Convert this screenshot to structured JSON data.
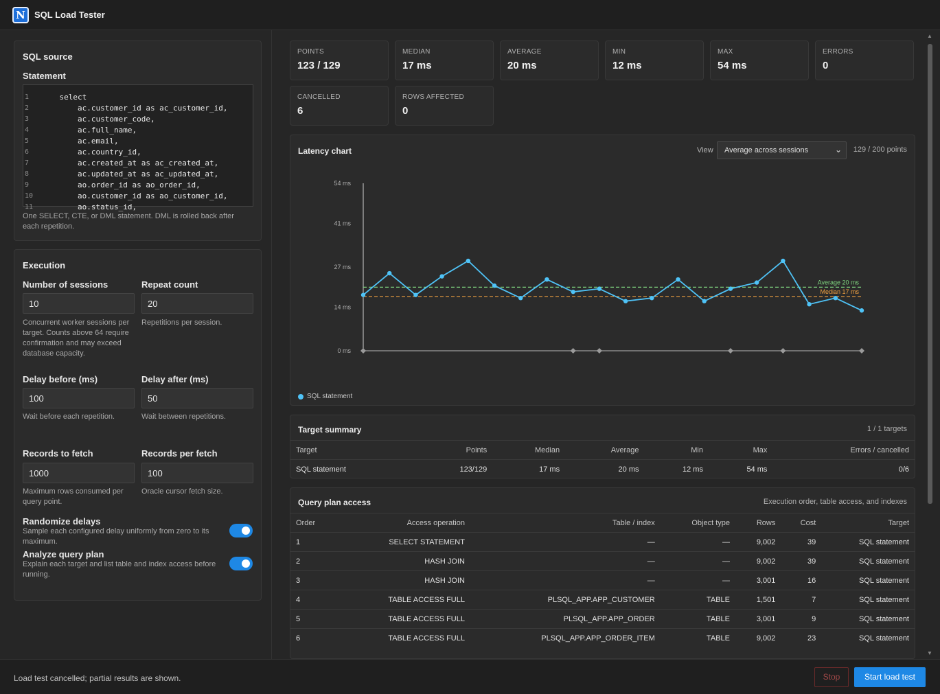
{
  "app": {
    "title": "SQL Load Tester"
  },
  "sql_source": {
    "title": "SQL source",
    "statement_label": "Statement",
    "lines": [
      {
        "n": "1",
        "t": "    select"
      },
      {
        "n": "2",
        "t": "        ac.customer_id as ac_customer_id,"
      },
      {
        "n": "3",
        "t": "        ac.customer_code,"
      },
      {
        "n": "4",
        "t": "        ac.full_name,"
      },
      {
        "n": "5",
        "t": "        ac.email,"
      },
      {
        "n": "6",
        "t": "        ac.country_id,"
      },
      {
        "n": "7",
        "t": "        ac.created_at as ac_created_at,"
      },
      {
        "n": "8",
        "t": "        ac.updated_at as ac_updated_at,"
      },
      {
        "n": "9",
        "t": "        ao.order_id as ao_order_id,"
      },
      {
        "n": "10",
        "t": "        ao.customer_id as ao_customer_id,"
      },
      {
        "n": "11",
        "t": "        ao.status_id,"
      }
    ],
    "help": "One SELECT, CTE, or DML statement. DML is rolled back after each repetition."
  },
  "execution": {
    "title": "Execution",
    "sessions_label": "Number of sessions",
    "sessions_value": "10",
    "sessions_help": "Concurrent worker sessions per target. Counts above 64 require confirmation and may exceed database capacity.",
    "repeat_label": "Repeat count",
    "repeat_value": "20",
    "repeat_help": "Repetitions per session.",
    "delay_before_label": "Delay before (ms)",
    "delay_before_value": "100",
    "delay_before_help": "Wait before each repetition.",
    "delay_after_label": "Delay after (ms)",
    "delay_after_value": "50",
    "delay_after_help": "Wait between repetitions.",
    "records_label": "Records to fetch",
    "records_value": "1000",
    "records_help": "Maximum rows consumed per query point.",
    "per_fetch_label": "Records per fetch",
    "per_fetch_value": "100",
    "per_fetch_help": "Oracle cursor fetch size.",
    "randomize_label": "Randomize delays",
    "randomize_help": "Sample each configured delay uniformly from zero to its maximum.",
    "randomize_on": true,
    "analyze_label": "Analyze query plan",
    "analyze_help": "Explain each target and list table and index access before running.",
    "analyze_on": true
  },
  "stats": [
    {
      "label": "POINTS",
      "value": "123 / 129"
    },
    {
      "label": "MEDIAN",
      "value": "17 ms"
    },
    {
      "label": "AVERAGE",
      "value": "20 ms"
    },
    {
      "label": "MIN",
      "value": "12 ms"
    },
    {
      "label": "MAX",
      "value": "54 ms"
    },
    {
      "label": "ERRORS",
      "value": "0"
    },
    {
      "label": "CANCELLED",
      "value": "6"
    },
    {
      "label": "ROWS AFFECTED",
      "value": "0"
    }
  ],
  "latency": {
    "title": "Latency chart",
    "view_label": "View",
    "view_selected": "Average across sessions",
    "points_text": "129 / 200 points",
    "legend": "SQL statement"
  },
  "chart_data": {
    "type": "line",
    "ylim": [
      0,
      54
    ],
    "yticks": [
      "54 ms",
      "41 ms",
      "27 ms",
      "14 ms",
      "0 ms"
    ],
    "ytick_values": [
      54,
      41,
      27,
      14,
      0
    ],
    "series": [
      {
        "name": "SQL statement",
        "color": "#4fc3f7",
        "values": [
          18,
          25,
          18,
          24,
          29,
          21,
          17,
          23,
          19,
          20,
          16,
          17,
          23,
          16,
          20,
          22,
          29,
          15,
          17,
          13
        ]
      }
    ],
    "cancelled_markers": [
      0,
      8,
      9,
      14,
      16,
      19
    ],
    "average": {
      "value": 20.5,
      "label": "Average 20 ms",
      "color": "#7fd47f"
    },
    "median": {
      "value": 17.5,
      "label": "Median 17 ms",
      "color": "#f0a040"
    }
  },
  "target_summary": {
    "title": "Target summary",
    "count": "1 / 1 targets",
    "headers": [
      "Target",
      "Points",
      "Median",
      "Average",
      "Min",
      "Max",
      "Errors / cancelled"
    ],
    "rows": [
      [
        "SQL statement",
        "123/129",
        "17 ms",
        "20 ms",
        "12 ms",
        "54 ms",
        "0/6"
      ]
    ]
  },
  "query_plan": {
    "title": "Query plan access",
    "subtitle": "Execution order, table access, and indexes",
    "headers": [
      "Order",
      "Access operation",
      "Table / index",
      "Object type",
      "Rows",
      "Cost",
      "Target"
    ],
    "rows": [
      [
        "1",
        "SELECT STATEMENT",
        "—",
        "—",
        "9,002",
        "39",
        "SQL statement"
      ],
      [
        "2",
        "HASH JOIN",
        "—",
        "—",
        "9,002",
        "39",
        "SQL statement"
      ],
      [
        "3",
        "HASH JOIN",
        "—",
        "—",
        "3,001",
        "16",
        "SQL statement"
      ],
      [
        "4",
        "TABLE ACCESS FULL",
        "PLSQL_APP.APP_CUSTOMER",
        "TABLE",
        "1,501",
        "7",
        "SQL statement"
      ],
      [
        "5",
        "TABLE ACCESS FULL",
        "PLSQL_APP.APP_ORDER",
        "TABLE",
        "3,001",
        "9",
        "SQL statement"
      ],
      [
        "6",
        "TABLE ACCESS FULL",
        "PLSQL_APP.APP_ORDER_ITEM",
        "TABLE",
        "9,002",
        "23",
        "SQL statement"
      ]
    ]
  },
  "status": {
    "text": "Load test cancelled; partial results are shown.",
    "stop_label": "Stop",
    "start_label": "Start load test"
  }
}
